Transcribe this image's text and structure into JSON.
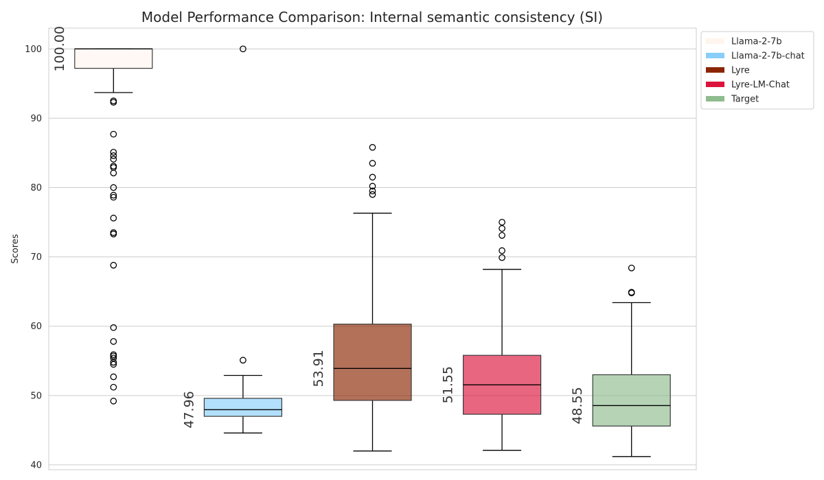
{
  "chart_data": {
    "type": "box",
    "title": "Model Performance Comparison: Internal semantic consistency (SI)",
    "xlabel": "",
    "ylabel": "Scores",
    "ylim": [
      39.3,
      103.0
    ],
    "yticks": [
      40,
      50,
      60,
      70,
      80,
      90,
      100
    ],
    "ytick_labels": [
      "40",
      "50",
      "60",
      "70",
      "80",
      "90",
      "100"
    ],
    "grid": true,
    "legend_position": "outside top-right",
    "series": [
      {
        "name": "Llama-2-7b",
        "color": "#FFF5EE",
        "q1": 97.2,
        "median": 100.0,
        "q3": 100.0,
        "whisker_low": 93.7,
        "whisker_high": 100.0,
        "outliers": [
          92.5,
          92.3,
          87.7,
          85.1,
          84.6,
          84.1,
          83.1,
          82.9,
          82.1,
          80.0,
          78.9,
          78.6,
          75.6,
          73.5,
          73.3,
          68.8,
          59.8,
          57.8,
          55.9,
          55.7,
          55.4,
          54.8,
          54.5,
          52.7,
          51.2,
          49.2
        ],
        "median_label": "100.00"
      },
      {
        "name": "Llama-2-7b-chat",
        "color": "#87CEFA",
        "q1": 47.0,
        "median": 47.96,
        "q3": 49.6,
        "whisker_low": 44.6,
        "whisker_high": 52.9,
        "outliers": [
          55.1,
          100.0
        ],
        "median_label": "47.96"
      },
      {
        "name": "Lyre",
        "color": "#8B2500",
        "q1": 49.3,
        "median": 53.91,
        "q3": 60.3,
        "whisker_low": 42.0,
        "whisker_high": 76.3,
        "outliers": [
          79.0,
          79.5,
          80.2,
          81.5,
          83.5,
          85.8
        ],
        "median_label": "53.91"
      },
      {
        "name": "Lyre-LM-Chat",
        "color": "#DC143C",
        "q1": 47.3,
        "median": 51.55,
        "q3": 55.8,
        "whisker_low": 42.1,
        "whisker_high": 68.2,
        "outliers": [
          69.9,
          70.9,
          73.1,
          74.1,
          75.0
        ],
        "median_label": "51.55"
      },
      {
        "name": "Target",
        "color": "#8FBC8F",
        "q1": 45.6,
        "median": 48.55,
        "q3": 53.0,
        "whisker_low": 41.2,
        "whisker_high": 63.4,
        "outliers": [
          64.8,
          64.9,
          68.4
        ],
        "median_label": "48.55"
      }
    ]
  }
}
